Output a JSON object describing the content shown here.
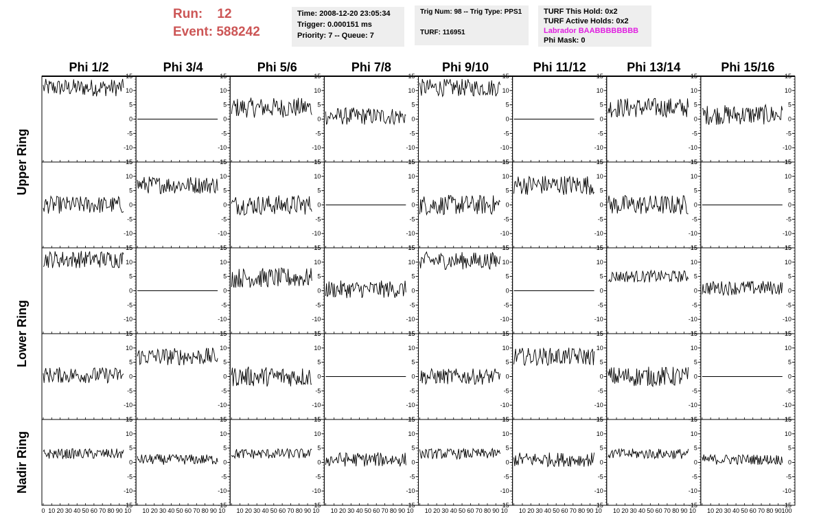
{
  "header": {
    "run_label": "Run:",
    "run_value": "12",
    "event_label": "Event:",
    "event_value": "588242",
    "time_text": "Time: 2008-12-20 23:05:34",
    "trigger_text": "Trigger: 0.000151 ms",
    "priority_text": "Priority: 7 -- Queue: 7",
    "trig_num_text": "Trig Num: 98 -- Trig Type: PPS1",
    "turf_text": "TURF: 116951",
    "turf_this_hold_text": "TURF This Hold: 0x2",
    "turf_active_holds_text": "TURF Active Holds: 0x2",
    "labrador_text": "Labrador BAABBBBBBBB",
    "phi_mask_text": "Phi Mask: 0"
  },
  "colors": {
    "run_text": "#cc5555",
    "labrador_text": "#e020e0",
    "info_background": "#eeeeee",
    "trace": "#000000"
  },
  "chart_data": {
    "type": "line",
    "column_labels": [
      "Phi 1/2",
      "Phi 3/4",
      "Phi 5/6",
      "Phi 7/8",
      "Phi 9/10",
      "Phi 11/12",
      "Phi 13/14",
      "Phi 15/16"
    ],
    "ring_labels": [
      "Upper Ring",
      "Lower Ring",
      "Nadir Ring"
    ],
    "rows_per_ring": [
      2,
      2,
      1
    ],
    "ylim": [
      -15,
      15
    ],
    "y_ticks": [
      -15,
      -10,
      -5,
      0,
      5,
      10,
      15
    ],
    "xlim": [
      0,
      100
    ],
    "x_ticks": [
      0,
      10,
      20,
      30,
      40,
      50,
      60,
      70,
      80,
      90,
      100
    ],
    "x_tick_labels_first": [
      "0",
      "10",
      "20",
      "30",
      "40",
      "50",
      "60",
      "70",
      "80",
      "90",
      "10"
    ],
    "x_tick_labels": [
      "10",
      "20",
      "30",
      "40",
      "50",
      "60",
      "70",
      "80",
      "90",
      "10"
    ],
    "x_tick_labels_last": [
      "10",
      "20",
      "30",
      "40",
      "50",
      "60",
      "70",
      "80",
      "90",
      "100"
    ],
    "n_samples": 96,
    "panels": [
      [
        {
          "mean": 11,
          "noise": 2.2,
          "flat": false
        },
        {
          "mean": 0,
          "noise": 0,
          "flat": true
        },
        {
          "mean": 4,
          "noise": 2.5,
          "flat": false
        },
        {
          "mean": 1,
          "noise": 2.2,
          "flat": false
        },
        {
          "mean": 11,
          "noise": 2.2,
          "flat": false
        },
        {
          "mean": 0,
          "noise": 0,
          "flat": true
        },
        {
          "mean": 4,
          "noise": 2.5,
          "flat": false
        },
        {
          "mean": 1.5,
          "noise": 2.5,
          "flat": false
        }
      ],
      [
        {
          "mean": 0,
          "noise": 2.2,
          "flat": false
        },
        {
          "mean": 7,
          "noise": 2.2,
          "flat": false
        },
        {
          "mean": 0,
          "noise": 2.5,
          "flat": false
        },
        {
          "mean": 0,
          "noise": 0,
          "flat": true
        },
        {
          "mean": 0,
          "noise": 2.5,
          "flat": false
        },
        {
          "mean": 7,
          "noise": 2.5,
          "flat": false
        },
        {
          "mean": 0,
          "noise": 2.5,
          "flat": false
        },
        {
          "mean": 0,
          "noise": 0,
          "flat": true
        }
      ],
      [
        {
          "mean": 11,
          "noise": 2.2,
          "flat": false
        },
        {
          "mean": 0,
          "noise": 0,
          "flat": true
        },
        {
          "mean": 4.5,
          "noise": 2.5,
          "flat": false
        },
        {
          "mean": 0.5,
          "noise": 2.2,
          "flat": false
        },
        {
          "mean": 10.5,
          "noise": 2.2,
          "flat": false
        },
        {
          "mean": 0,
          "noise": 0,
          "flat": true
        },
        {
          "mean": 5,
          "noise": 1.5,
          "flat": false
        },
        {
          "mean": 1,
          "noise": 1.8,
          "flat": false
        }
      ],
      [
        {
          "mean": 0.5,
          "noise": 2.0,
          "flat": false
        },
        {
          "mean": 7,
          "noise": 2.2,
          "flat": false
        },
        {
          "mean": 0,
          "noise": 2.5,
          "flat": false
        },
        {
          "mean": 0,
          "noise": 0,
          "flat": true
        },
        {
          "mean": 0,
          "noise": 2.0,
          "flat": false
        },
        {
          "mean": 7,
          "noise": 2.2,
          "flat": false
        },
        {
          "mean": 0,
          "noise": 2.5,
          "flat": false
        },
        {
          "mean": 0,
          "noise": 0,
          "flat": true
        }
      ],
      [
        {
          "mean": 3,
          "noise": 1.3,
          "flat": false
        },
        {
          "mean": 1,
          "noise": 1.3,
          "flat": false
        },
        {
          "mean": 3,
          "noise": 1.3,
          "flat": false
        },
        {
          "mean": 1,
          "noise": 1.8,
          "flat": false
        },
        {
          "mean": 3,
          "noise": 1.3,
          "flat": false
        },
        {
          "mean": 1,
          "noise": 1.8,
          "flat": false
        },
        {
          "mean": 3,
          "noise": 1.3,
          "flat": false
        },
        {
          "mean": 1,
          "noise": 1.3,
          "flat": false
        }
      ]
    ]
  }
}
